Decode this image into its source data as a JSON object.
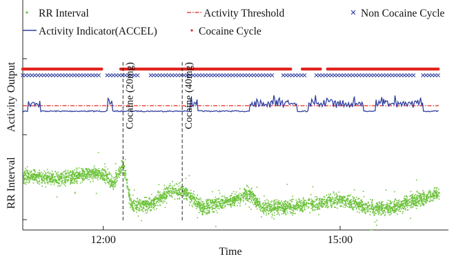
{
  "chart_data": {
    "type": "scatter",
    "title": "",
    "xlabel": "Time",
    "x_unit": "time of day (hours)",
    "xlim": [
      10.98,
      16.25
    ],
    "x_ticks": [
      {
        "value": 12.0,
        "label": "12:00"
      },
      {
        "value": 15.0,
        "label": "15:00"
      }
    ],
    "panels": [
      {
        "label": "Output"
      },
      {
        "label": "Activity"
      },
      {
        "label": "RR Interval"
      }
    ],
    "legend": {
      "placement": "top",
      "entries": [
        {
          "label": "RR Interval",
          "marker": "dot",
          "color": "#6cc23a"
        },
        {
          "label": "Activity Threshold",
          "marker": "dash-dot",
          "color": "#e0241d"
        },
        {
          "label": "Non Cocaine Cycle",
          "marker": "x",
          "color": "#2f3fa0"
        },
        {
          "label": "Activity Indicator(ACCEL)",
          "marker": "line",
          "color": "#2f3fa0"
        },
        {
          "label": "Cocaine Cycle",
          "marker": "dot",
          "color": "#e0241d"
        }
      ]
    },
    "events": [
      {
        "x": 12.25,
        "label": "Cocaine (20mg)"
      },
      {
        "x": 13.0,
        "label": "Cocaine (40mg)"
      }
    ],
    "series": [
      {
        "name": "Cocaine Cycle",
        "panel": "Output",
        "kind": "segments",
        "level": 1,
        "color": "#e0241d",
        "x_ranges": [
          [
            10.98,
            11.98
          ],
          [
            12.22,
            14.38
          ],
          [
            14.52,
            14.76
          ],
          [
            14.84,
            16.25
          ]
        ]
      },
      {
        "name": "Non Cocaine Cycle",
        "panel": "Output",
        "kind": "segments",
        "level": 0,
        "color": "#2f3fa0",
        "x_ranges": [
          [
            10.98,
            11.95
          ],
          [
            12.05,
            12.45
          ],
          [
            12.6,
            14.15
          ],
          [
            14.28,
            14.58
          ],
          [
            14.7,
            15.95
          ],
          [
            16.05,
            16.25
          ]
        ]
      },
      {
        "name": "Activity Threshold",
        "panel": "Activity",
        "kind": "hline",
        "value": 1.0,
        "color": "#e0241d"
      },
      {
        "name": "Activity Indicator(ACCEL)",
        "panel": "Activity",
        "kind": "line",
        "color": "#2f3fa0",
        "baseline": 0.55,
        "active_ranges": [
          [
            11.05,
            11.2
          ],
          [
            12.05,
            12.12
          ],
          [
            13.1,
            13.2
          ],
          [
            13.85,
            14.45
          ],
          [
            14.6,
            15.3
          ],
          [
            15.45,
            16.05
          ]
        ],
        "active_level": 1.2
      },
      {
        "name": "RR Interval",
        "panel": "RR Interval",
        "kind": "scatter",
        "color": "#6cc23a",
        "ylim": [
          0.3,
          1.05
        ],
        "trend": [
          {
            "x": 10.98,
            "y": 0.75
          },
          {
            "x": 11.4,
            "y": 0.73
          },
          {
            "x": 11.9,
            "y": 0.78
          },
          {
            "x": 12.05,
            "y": 0.74
          },
          {
            "x": 12.12,
            "y": 0.68
          },
          {
            "x": 12.25,
            "y": 0.84
          },
          {
            "x": 12.35,
            "y": 0.48
          },
          {
            "x": 12.6,
            "y": 0.5
          },
          {
            "x": 12.85,
            "y": 0.62
          },
          {
            "x": 13.0,
            "y": 0.62
          },
          {
            "x": 13.25,
            "y": 0.47
          },
          {
            "x": 13.6,
            "y": 0.53
          },
          {
            "x": 13.85,
            "y": 0.6
          },
          {
            "x": 14.0,
            "y": 0.47
          },
          {
            "x": 14.4,
            "y": 0.48
          },
          {
            "x": 14.8,
            "y": 0.52
          },
          {
            "x": 15.0,
            "y": 0.55
          },
          {
            "x": 15.3,
            "y": 0.48
          },
          {
            "x": 15.6,
            "y": 0.46
          },
          {
            "x": 15.85,
            "y": 0.52
          },
          {
            "x": 16.05,
            "y": 0.55
          },
          {
            "x": 16.25,
            "y": 0.6
          }
        ],
        "spread": 0.06
      }
    ]
  }
}
